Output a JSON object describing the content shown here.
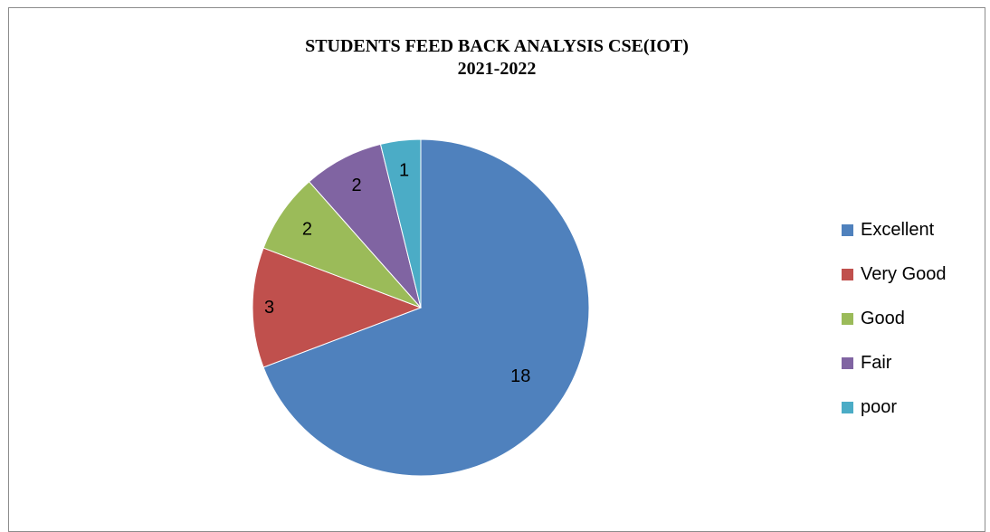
{
  "chart_data": {
    "type": "pie",
    "title": "STUDENTS FEED BACK ANALYSIS CSE(IOT)",
    "subtitle": "2021-2022",
    "categories": [
      "Excellent",
      "Very Good",
      "Good",
      "Fair",
      "poor"
    ],
    "values": [
      18,
      3,
      2,
      2,
      1
    ],
    "colors": [
      "#4f81bd",
      "#c0504d",
      "#9bbb59",
      "#8064a2",
      "#4bacc6"
    ],
    "data_labels": [
      "18",
      "3",
      "2",
      "2",
      "1"
    ],
    "legend_position": "right",
    "start_angle_deg": 0,
    "direction": "clockwise"
  }
}
